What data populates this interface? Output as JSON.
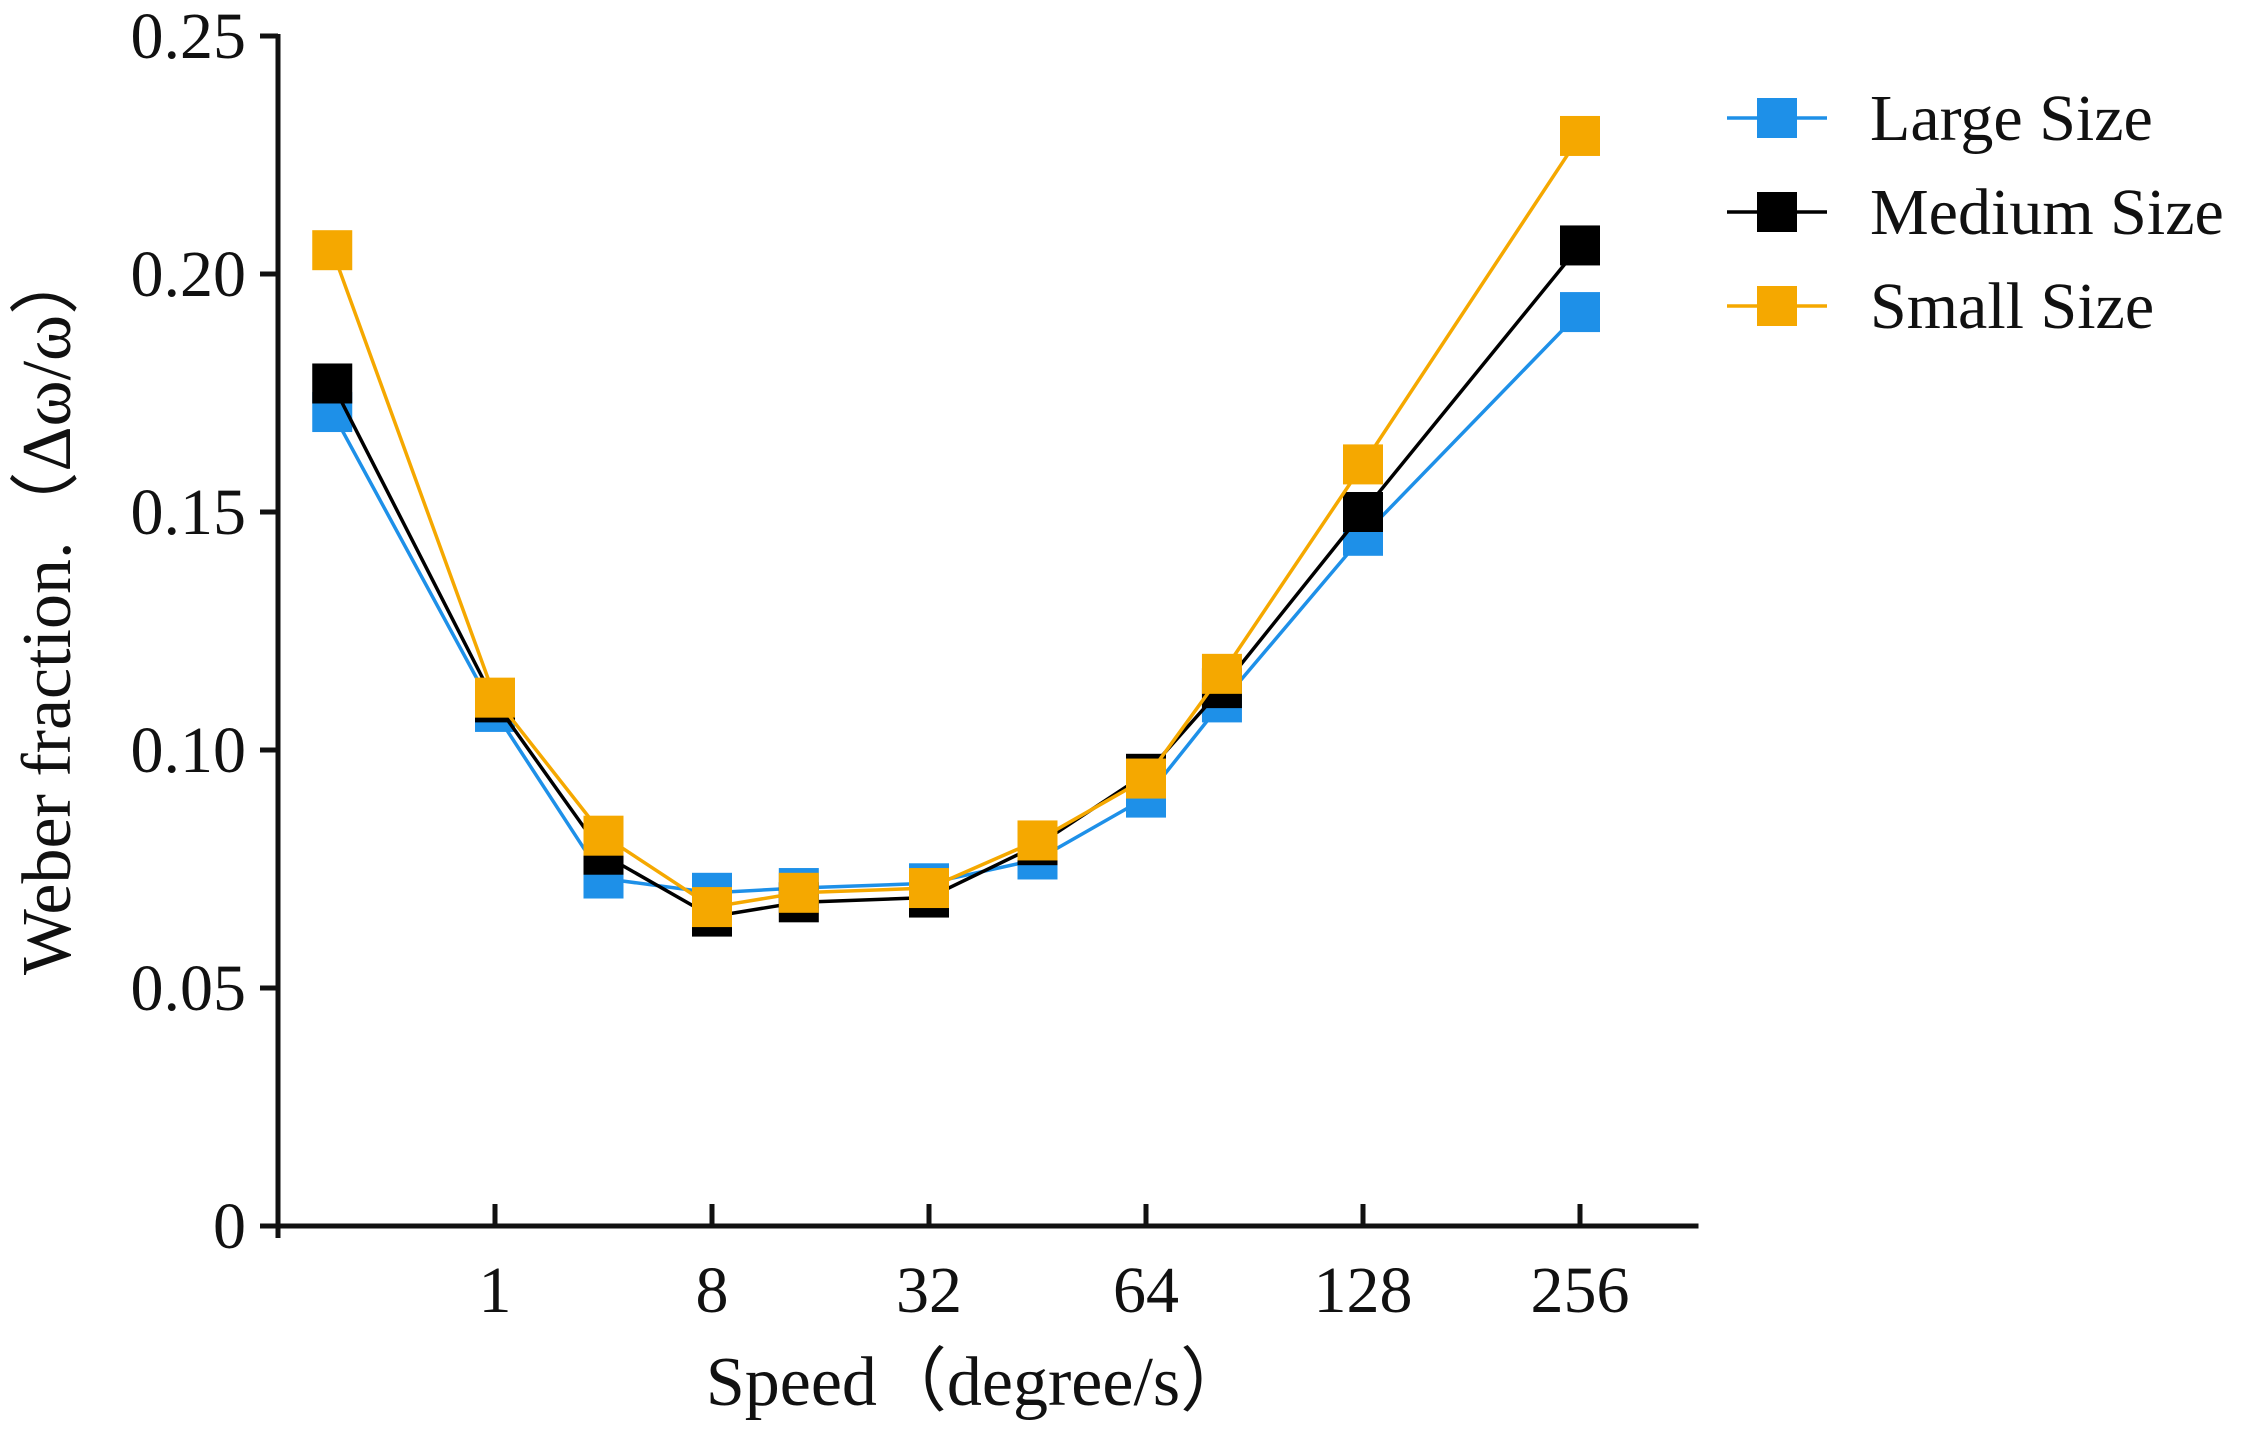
{
  "chart_data": {
    "type": "line",
    "title": "",
    "xlabel": "Speed（degree/s）",
    "ylabel": "Weber fraction.（Δω/ω）",
    "ylim": [
      0,
      0.25
    ],
    "yticks": [
      {
        "value": 0,
        "label": "0"
      },
      {
        "value": 0.05,
        "label": "0.05"
      },
      {
        "value": 0.1,
        "label": "0.10"
      },
      {
        "value": 0.15,
        "label": "0.15"
      },
      {
        "value": 0.2,
        "label": "0.20"
      },
      {
        "value": 0.25,
        "label": "0.25"
      }
    ],
    "xlim": [
      0,
      13
    ],
    "xticks": [
      {
        "pos": 2,
        "label": "1"
      },
      {
        "pos": 4,
        "label": "8"
      },
      {
        "pos": 6,
        "label": "32"
      },
      {
        "pos": 8,
        "label": "64"
      },
      {
        "pos": 10,
        "label": "128"
      },
      {
        "pos": 12,
        "label": "256"
      }
    ],
    "x": [
      0.5,
      2,
      3,
      4,
      4.8,
      6,
      7,
      8,
      8.7,
      10,
      12
    ],
    "legend_position": "top-right",
    "series": [
      {
        "name": "Large Size",
        "color": "#1E90E8",
        "values": [
          0.171,
          0.108,
          0.073,
          0.07,
          0.071,
          0.072,
          0.077,
          0.09,
          0.11,
          0.145,
          0.192
        ]
      },
      {
        "name": "Medium Size",
        "color": "#000000",
        "values": [
          0.177,
          0.11,
          0.078,
          0.065,
          0.068,
          0.069,
          0.08,
          0.095,
          0.113,
          0.15,
          0.206
        ]
      },
      {
        "name": "Small Size",
        "color": "#F5A800",
        "values": [
          0.205,
          0.111,
          0.082,
          0.067,
          0.07,
          0.071,
          0.081,
          0.094,
          0.116,
          0.16,
          0.229
        ]
      }
    ]
  }
}
